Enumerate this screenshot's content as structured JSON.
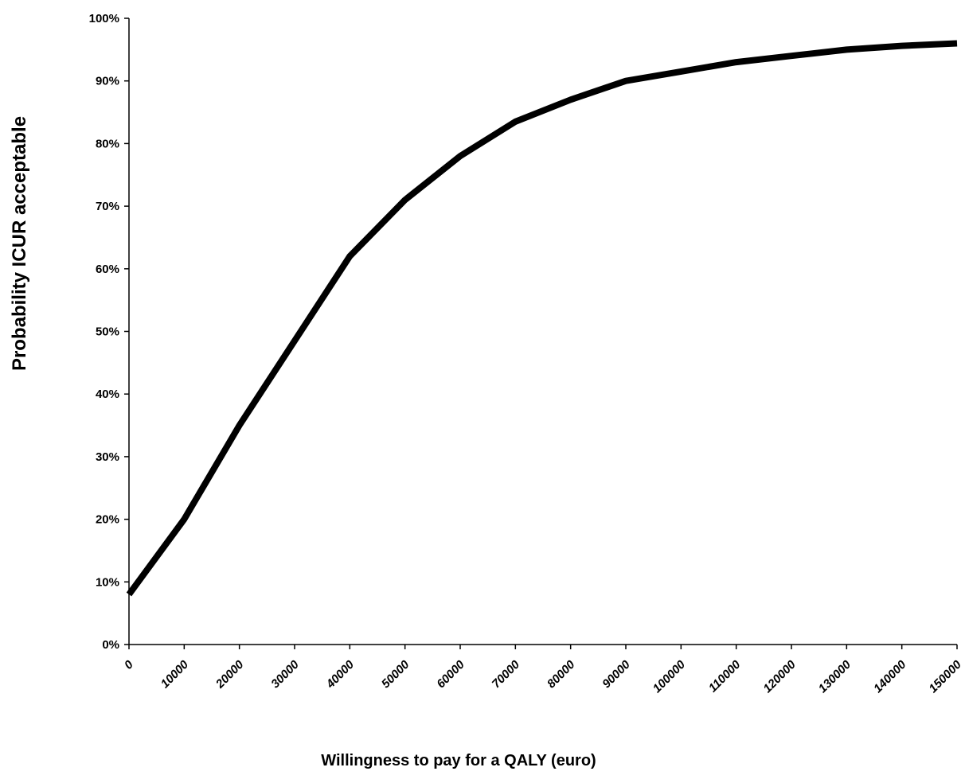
{
  "chart_data": {
    "type": "line",
    "title": "",
    "xlabel": "Willingness to pay for a QALY (euro)",
    "ylabel": "Probability ICUR acceptable",
    "xlim": [
      0,
      150000
    ],
    "ylim": [
      0,
      1
    ],
    "grid": false,
    "legend": "none",
    "x_ticks": [
      "0",
      "10000",
      "20000",
      "30000",
      "40000",
      "50000",
      "60000",
      "70000",
      "80000",
      "90000",
      "100000",
      "110000",
      "120000",
      "130000",
      "140000",
      "150000"
    ],
    "y_ticks": [
      "0%",
      "10%",
      "20%",
      "30%",
      "40%",
      "50%",
      "60%",
      "70%",
      "80%",
      "90%",
      "100%"
    ],
    "series": [
      {
        "color": "#000000",
        "x": [
          0,
          10000,
          20000,
          30000,
          40000,
          50000,
          60000,
          70000,
          80000,
          90000,
          100000,
          110000,
          120000,
          130000,
          140000,
          150000
        ],
        "values": [
          0.08,
          0.2,
          0.35,
          0.485,
          0.62,
          0.71,
          0.78,
          0.835,
          0.87,
          0.9,
          0.915,
          0.93,
          0.94,
          0.95,
          0.956,
          0.96
        ]
      }
    ]
  }
}
